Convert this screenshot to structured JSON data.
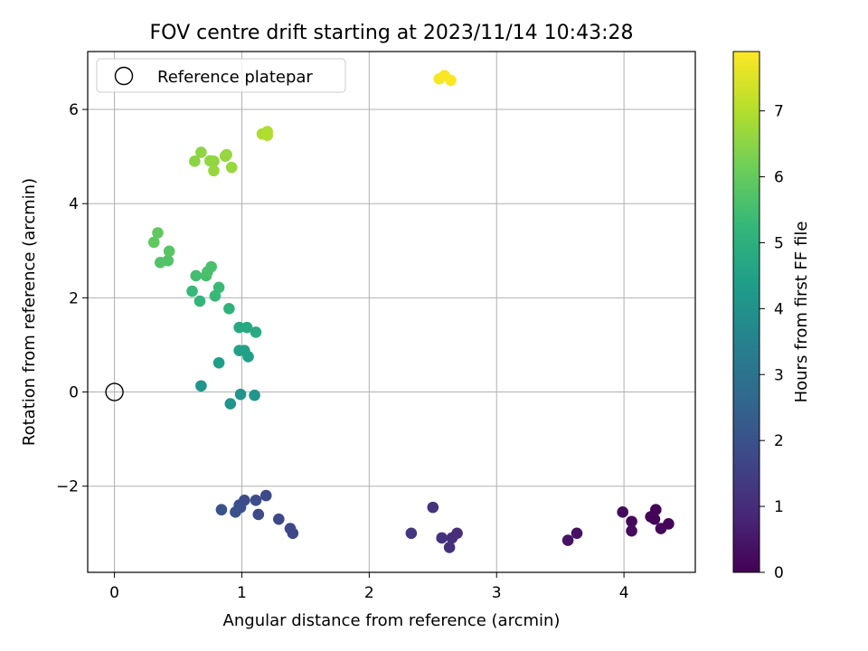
{
  "chart_data": {
    "type": "scatter",
    "title": "FOV centre drift starting at 2023/11/14 10:43:28",
    "xlabel": "Angular distance from reference (arcmin)",
    "ylabel": "Rotation from reference (arcmin)",
    "xlim": [
      -0.21,
      4.56
    ],
    "ylim": [
      -3.83,
      7.23
    ],
    "xticks": [
      "0",
      "1",
      "2",
      "3",
      "4"
    ],
    "yticks": [
      "−2",
      "0",
      "2",
      "4",
      "6"
    ],
    "grid": true,
    "legend": {
      "placement": "top-left",
      "entries": [
        "Reference platepar"
      ]
    },
    "reference": {
      "x": 0,
      "y": 0,
      "label": "Reference platepar"
    },
    "colorbar": {
      "label": "Hours from first FF file",
      "colormap": "viridis",
      "range": [
        0,
        7.9
      ],
      "ticks": [
        "0",
        "1",
        "2",
        "3",
        "4",
        "5",
        "6",
        "7"
      ]
    },
    "colormap_stops": [
      "#440154",
      "#482878",
      "#3e4989",
      "#31688e",
      "#26828e",
      "#1f9e89",
      "#35b779",
      "#6ece58",
      "#b5de2b",
      "#fde725"
    ],
    "points": [
      {
        "x": 4.25,
        "y": -2.5,
        "h": 0.05
      },
      {
        "x": 4.21,
        "y": -2.65,
        "h": 0.08
      },
      {
        "x": 4.24,
        "y": -2.7,
        "h": 0.1
      },
      {
        "x": 4.35,
        "y": -2.8,
        "h": 0.12
      },
      {
        "x": 4.29,
        "y": -2.9,
        "h": 0.14
      },
      {
        "x": 4.06,
        "y": -2.75,
        "h": 0.18
      },
      {
        "x": 4.06,
        "y": -2.95,
        "h": 0.22
      },
      {
        "x": 3.99,
        "y": -2.55,
        "h": 0.25
      },
      {
        "x": 3.63,
        "y": -3.0,
        "h": 0.35
      },
      {
        "x": 3.56,
        "y": -3.15,
        "h": 0.4
      },
      {
        "x": 2.69,
        "y": -3.0,
        "h": 1.0
      },
      {
        "x": 2.65,
        "y": -3.1,
        "h": 1.05
      },
      {
        "x": 2.63,
        "y": -3.3,
        "h": 1.1
      },
      {
        "x": 2.57,
        "y": -3.1,
        "h": 1.15
      },
      {
        "x": 2.5,
        "y": -2.45,
        "h": 1.2
      },
      {
        "x": 2.33,
        "y": -3.0,
        "h": 1.25
      },
      {
        "x": 1.4,
        "y": -3.0,
        "h": 1.7
      },
      {
        "x": 1.38,
        "y": -2.9,
        "h": 1.73
      },
      {
        "x": 1.29,
        "y": -2.7,
        "h": 1.76
      },
      {
        "x": 1.19,
        "y": -2.2,
        "h": 1.79
      },
      {
        "x": 1.13,
        "y": -2.6,
        "h": 1.82
      },
      {
        "x": 1.11,
        "y": -2.3,
        "h": 1.85
      },
      {
        "x": 1.02,
        "y": -2.3,
        "h": 1.88
      },
      {
        "x": 0.98,
        "y": -2.4,
        "h": 1.91
      },
      {
        "x": 0.99,
        "y": -2.45,
        "h": 1.94
      },
      {
        "x": 0.95,
        "y": -2.55,
        "h": 1.97
      },
      {
        "x": 0.84,
        "y": -2.5,
        "h": 2.0
      },
      {
        "x": 0.68,
        "y": 0.13,
        "h": 4.1
      },
      {
        "x": 0.91,
        "y": -0.25,
        "h": 4.1
      },
      {
        "x": 0.99,
        "y": -0.05,
        "h": 4.12
      },
      {
        "x": 1.1,
        "y": -0.07,
        "h": 4.14
      },
      {
        "x": 0.82,
        "y": 0.62,
        "h": 4.4
      },
      {
        "x": 1.05,
        "y": 0.75,
        "h": 4.45
      },
      {
        "x": 0.98,
        "y": 0.88,
        "h": 4.48
      },
      {
        "x": 1.02,
        "y": 0.88,
        "h": 4.5
      },
      {
        "x": 0.98,
        "y": 1.37,
        "h": 4.75
      },
      {
        "x": 1.04,
        "y": 1.37,
        "h": 4.78
      },
      {
        "x": 1.11,
        "y": 1.27,
        "h": 4.8
      },
      {
        "x": 0.9,
        "y": 1.77,
        "h": 5.1
      },
      {
        "x": 0.67,
        "y": 1.93,
        "h": 5.2
      },
      {
        "x": 0.61,
        "y": 2.14,
        "h": 5.3
      },
      {
        "x": 0.79,
        "y": 2.04,
        "h": 5.3
      },
      {
        "x": 0.82,
        "y": 2.22,
        "h": 5.35
      },
      {
        "x": 0.64,
        "y": 2.47,
        "h": 5.5
      },
      {
        "x": 0.72,
        "y": 2.47,
        "h": 5.55
      },
      {
        "x": 0.73,
        "y": 2.55,
        "h": 5.6
      },
      {
        "x": 0.76,
        "y": 2.66,
        "h": 5.6
      },
      {
        "x": 0.36,
        "y": 2.75,
        "h": 5.7
      },
      {
        "x": 0.42,
        "y": 2.79,
        "h": 5.72
      },
      {
        "x": 0.43,
        "y": 2.99,
        "h": 5.8
      },
      {
        "x": 0.31,
        "y": 3.18,
        "h": 5.9
      },
      {
        "x": 0.34,
        "y": 3.38,
        "h": 5.95
      },
      {
        "x": 0.63,
        "y": 4.9,
        "h": 6.5
      },
      {
        "x": 0.68,
        "y": 5.09,
        "h": 6.55
      },
      {
        "x": 0.75,
        "y": 4.91,
        "h": 6.58
      },
      {
        "x": 0.78,
        "y": 4.9,
        "h": 6.6
      },
      {
        "x": 0.87,
        "y": 5.01,
        "h": 6.62
      },
      {
        "x": 0.88,
        "y": 5.04,
        "h": 6.64
      },
      {
        "x": 0.78,
        "y": 4.7,
        "h": 6.66
      },
      {
        "x": 0.92,
        "y": 4.77,
        "h": 6.68
      },
      {
        "x": 1.16,
        "y": 5.48,
        "h": 6.9
      },
      {
        "x": 1.2,
        "y": 5.53,
        "h": 6.95
      },
      {
        "x": 1.2,
        "y": 5.45,
        "h": 6.97
      },
      {
        "x": 2.55,
        "y": 6.65,
        "h": 7.8
      },
      {
        "x": 2.59,
        "y": 6.72,
        "h": 7.85
      },
      {
        "x": 2.64,
        "y": 6.62,
        "h": 7.9
      }
    ]
  }
}
